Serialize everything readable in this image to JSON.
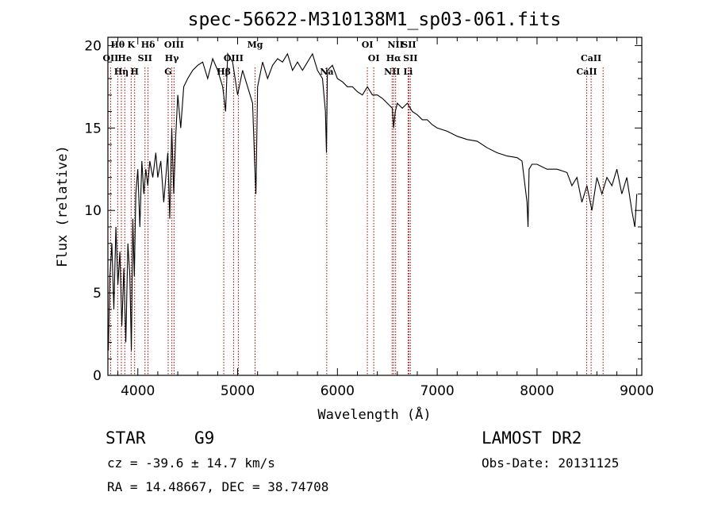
{
  "chart_data": {
    "type": "line",
    "title": "spec-56622-M310138M1_sp03-061.fits",
    "xlabel": "Wavelength (Å)",
    "ylabel": "Flux (relative)",
    "xlim": [
      3700,
      9050
    ],
    "ylim": [
      0,
      20.5
    ],
    "xticks": [
      4000,
      5000,
      6000,
      7000,
      8000,
      9000
    ],
    "yticks": [
      0,
      5,
      10,
      15,
      20
    ],
    "grid": false,
    "line_color": "#000000",
    "marker_color": "#990000",
    "series": [
      {
        "x": [
          3705,
          3720,
          3740,
          3760,
          3780,
          3800,
          3820,
          3840,
          3860,
          3880,
          3900,
          3920,
          3935,
          3950,
          3965,
          3980,
          4000,
          4020,
          4040,
          4060,
          4080,
          4100,
          4120,
          4150,
          4180,
          4200,
          4230,
          4260,
          4280,
          4300,
          4320,
          4340,
          4360,
          4380,
          4400,
          4430,
          4460,
          4500,
          4550,
          4600,
          4650,
          4700,
          4750,
          4800,
          4850,
          4880,
          4900,
          4950,
          5000,
          5050,
          5100,
          5150,
          5170,
          5183,
          5200,
          5250,
          5300,
          5350,
          5400,
          5450,
          5500,
          5550,
          5600,
          5650,
          5700,
          5750,
          5800,
          5850,
          5880,
          5890,
          5900,
          5950,
          6000,
          6050,
          6100,
          6150,
          6200,
          6250,
          6300,
          6350,
          6400,
          6450,
          6500,
          6550,
          6563,
          6580,
          6600,
          6650,
          6700,
          6750,
          6800,
          6850,
          6900,
          6950,
          7000,
          7100,
          7200,
          7300,
          7400,
          7500,
          7600,
          7700,
          7800,
          7850,
          7900,
          7910,
          7920,
          7950,
          8000,
          8100,
          8200,
          8300,
          8350,
          8400,
          8450,
          8500,
          8550,
          8600,
          8650,
          8700,
          8750,
          8800,
          8850,
          8900,
          8950,
          8980,
          9000
        ],
        "y": [
          1.5,
          6.0,
          8.0,
          4.0,
          9.0,
          5.5,
          7.5,
          3.0,
          6.5,
          2.0,
          8.0,
          6.0,
          1.5,
          9.5,
          6.0,
          11.0,
          12.5,
          9.0,
          13.0,
          11.0,
          12.5,
          11.5,
          13.0,
          12.0,
          13.5,
          12.0,
          13.0,
          10.5,
          12.0,
          13.5,
          9.5,
          15.0,
          11.0,
          14.5,
          17.0,
          15.0,
          17.5,
          18.0,
          18.5,
          18.8,
          19.0,
          18.0,
          19.2,
          18.5,
          17.5,
          16.0,
          19.5,
          19.0,
          17.0,
          18.5,
          17.5,
          16.5,
          13.0,
          11.0,
          17.5,
          19.0,
          18.0,
          18.8,
          19.2,
          19.0,
          19.5,
          18.5,
          19.0,
          18.5,
          19.0,
          19.5,
          18.5,
          18.0,
          16.0,
          13.5,
          18.5,
          18.8,
          18.0,
          17.8,
          17.5,
          17.5,
          17.2,
          17.0,
          17.5,
          17.0,
          17.0,
          16.8,
          16.5,
          16.2,
          15.0,
          16.0,
          16.5,
          16.2,
          16.5,
          16.0,
          15.8,
          15.5,
          15.5,
          15.2,
          15.0,
          14.8,
          14.5,
          14.3,
          14.2,
          13.8,
          13.5,
          13.3,
          13.2,
          13.0,
          10.5,
          9.0,
          12.5,
          12.8,
          12.8,
          12.5,
          12.5,
          12.3,
          11.5,
          12.0,
          10.5,
          11.5,
          10.0,
          12.0,
          11.0,
          12.0,
          11.5,
          12.5,
          11.0,
          12.0,
          10.0,
          9.0,
          11.0
        ]
      }
    ],
    "lines": [
      {
        "x": 3727,
        "label": "OII",
        "row": 1
      },
      {
        "x": 3798,
        "label": "Hθ",
        "row": 0
      },
      {
        "x": 3835,
        "label": "Hη",
        "row": 2
      },
      {
        "x": 3869,
        "label": "He",
        "row": 1
      },
      {
        "x": 3933,
        "label": "K",
        "row": 0
      },
      {
        "x": 3968,
        "label": "H",
        "row": 2
      },
      {
        "x": 4072,
        "label": "SII",
        "row": 1
      },
      {
        "x": 4102,
        "label": "Hδ",
        "row": 0
      },
      {
        "x": 4304,
        "label": "G",
        "row": 2
      },
      {
        "x": 4341,
        "label": "Hγ",
        "row": 1
      },
      {
        "x": 4363,
        "label": "OIII",
        "row": 0
      },
      {
        "x": 4861,
        "label": "Hβ",
        "row": 2
      },
      {
        "x": 4959,
        "label": "OIII",
        "row": 1
      },
      {
        "x": 5007,
        "label": "",
        "row": 0
      },
      {
        "x": 5175,
        "label": "Mg",
        "row": 0
      },
      {
        "x": 5893,
        "label": "Na",
        "row": 2
      },
      {
        "x": 6300,
        "label": "OI",
        "row": 0
      },
      {
        "x": 6364,
        "label": "OI",
        "row": 1
      },
      {
        "x": 6548,
        "label": "NII",
        "row": 2
      },
      {
        "x": 6563,
        "label": "Hα",
        "row": 1
      },
      {
        "x": 6583,
        "label": "NII",
        "row": 0
      },
      {
        "x": 6708,
        "label": "Li",
        "row": 2
      },
      {
        "x": 6716,
        "label": "SII",
        "row": 0
      },
      {
        "x": 6731,
        "label": "SII",
        "row": 1
      },
      {
        "x": 8498,
        "label": "CaII",
        "row": 2
      },
      {
        "x": 8542,
        "label": "CaII",
        "row": 1
      },
      {
        "x": 8662,
        "label": "",
        "row": 0
      }
    ]
  },
  "info": {
    "object_class": "STAR",
    "subclass": "G9",
    "survey": "LAMOST DR2",
    "redshift_text": "cz = -39.6 ± 14.7 km/s",
    "obs_date": "Obs-Date: 20131125",
    "coords": "RA =  14.48667, DEC =  38.74708"
  }
}
